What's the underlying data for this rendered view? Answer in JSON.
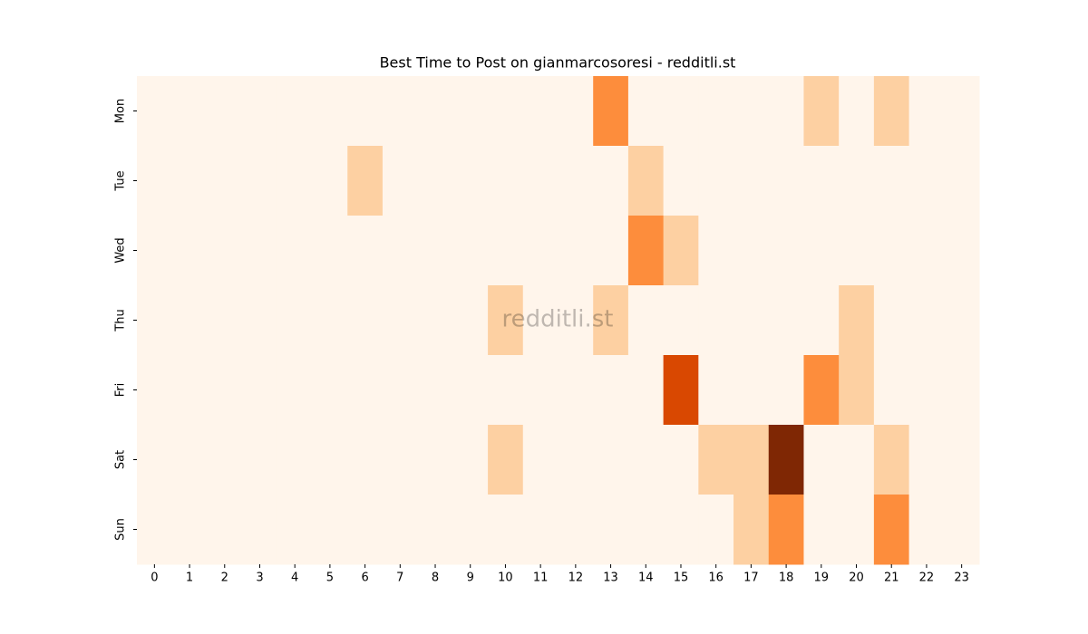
{
  "chart_data": {
    "type": "heatmap",
    "title": "Best Time to Post on gianmarcosoresi - redditli.st",
    "annotation": "redditli.st",
    "x_categories": [
      "0",
      "1",
      "2",
      "3",
      "4",
      "5",
      "6",
      "7",
      "8",
      "9",
      "10",
      "11",
      "12",
      "13",
      "14",
      "15",
      "16",
      "17",
      "18",
      "19",
      "20",
      "21",
      "22",
      "23"
    ],
    "y_categories": [
      "Mon",
      "Tue",
      "Wed",
      "Thu",
      "Fri",
      "Sat",
      "Sun"
    ],
    "values": [
      [
        0,
        0,
        0,
        0,
        0,
        0,
        0,
        0,
        0,
        0,
        0,
        0,
        0,
        2,
        0,
        0,
        0,
        0,
        0,
        1,
        0,
        1,
        0,
        0
      ],
      [
        0,
        0,
        0,
        0,
        0,
        0,
        1,
        0,
        0,
        0,
        0,
        0,
        0,
        0,
        1,
        0,
        0,
        0,
        0,
        0,
        0,
        0,
        0,
        0
      ],
      [
        0,
        0,
        0,
        0,
        0,
        0,
        0,
        0,
        0,
        0,
        0,
        0,
        0,
        0,
        2,
        1,
        0,
        0,
        0,
        0,
        0,
        0,
        0,
        0
      ],
      [
        0,
        0,
        0,
        0,
        0,
        0,
        0,
        0,
        0,
        0,
        1,
        0,
        0,
        1,
        0,
        0,
        0,
        0,
        0,
        0,
        1,
        0,
        0,
        0
      ],
      [
        0,
        0,
        0,
        0,
        0,
        0,
        0,
        0,
        0,
        0,
        0,
        0,
        0,
        0,
        0,
        3,
        0,
        0,
        0,
        2,
        1,
        0,
        0,
        0
      ],
      [
        0,
        0,
        0,
        0,
        0,
        0,
        0,
        0,
        0,
        0,
        1,
        0,
        0,
        0,
        0,
        0,
        1,
        1,
        4,
        0,
        0,
        1,
        0,
        0
      ],
      [
        0,
        0,
        0,
        0,
        0,
        0,
        0,
        0,
        0,
        0,
        0,
        0,
        0,
        0,
        0,
        0,
        0,
        1,
        2,
        0,
        0,
        2,
        0,
        0
      ]
    ],
    "vlim": [
      0,
      4
    ],
    "colormap": [
      "#fff5eb",
      "#fdd0a2",
      "#fd8d3c",
      "#d94801",
      "#7f2704"
    ]
  }
}
